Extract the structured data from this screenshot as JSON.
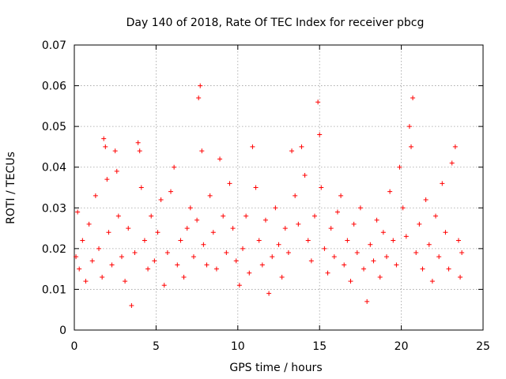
{
  "chart_data": {
    "type": "scatter",
    "title": "Day 140 of 2018, Rate Of TEC Index for receiver pbcg",
    "xlabel": "GPS time / hours",
    "ylabel": "ROTI / TECUs",
    "xlim": [
      0,
      25
    ],
    "ylim": [
      0,
      0.07
    ],
    "xticks": [
      "0",
      "5",
      "10",
      "15",
      "20",
      "25"
    ],
    "yticks": [
      "0",
      "0.01",
      "0.02",
      "0.03",
      "0.04",
      "0.05",
      "0.06",
      "0.07"
    ],
    "grid": true,
    "marker": "plus",
    "color": "#ff0000",
    "series": [
      {
        "name": "ROTI",
        "points": [
          [
            0.1,
            0.018
          ],
          [
            0.2,
            0.029
          ],
          [
            0.3,
            0.015
          ],
          [
            0.5,
            0.022
          ],
          [
            0.7,
            0.012
          ],
          [
            0.9,
            0.026
          ],
          [
            1.1,
            0.017
          ],
          [
            1.3,
            0.033
          ],
          [
            1.5,
            0.02
          ],
          [
            1.7,
            0.013
          ],
          [
            1.8,
            0.047
          ],
          [
            1.9,
            0.045
          ],
          [
            2.0,
            0.037
          ],
          [
            2.1,
            0.024
          ],
          [
            2.3,
            0.016
          ],
          [
            2.5,
            0.044
          ],
          [
            2.6,
            0.039
          ],
          [
            2.7,
            0.028
          ],
          [
            2.9,
            0.018
          ],
          [
            3.1,
            0.012
          ],
          [
            3.3,
            0.025
          ],
          [
            3.5,
            0.006
          ],
          [
            3.7,
            0.019
          ],
          [
            3.9,
            0.046
          ],
          [
            4.0,
            0.044
          ],
          [
            4.1,
            0.035
          ],
          [
            4.3,
            0.022
          ],
          [
            4.5,
            0.015
          ],
          [
            4.7,
            0.028
          ],
          [
            4.9,
            0.017
          ],
          [
            5.1,
            0.024
          ],
          [
            5.3,
            0.032
          ],
          [
            5.5,
            0.011
          ],
          [
            5.7,
            0.019
          ],
          [
            5.9,
            0.034
          ],
          [
            6.1,
            0.04
          ],
          [
            6.3,
            0.016
          ],
          [
            6.5,
            0.022
          ],
          [
            6.7,
            0.013
          ],
          [
            6.9,
            0.025
          ],
          [
            7.1,
            0.03
          ],
          [
            7.3,
            0.018
          ],
          [
            7.5,
            0.027
          ],
          [
            7.6,
            0.057
          ],
          [
            7.7,
            0.06
          ],
          [
            7.8,
            0.044
          ],
          [
            7.9,
            0.021
          ],
          [
            8.1,
            0.016
          ],
          [
            8.3,
            0.033
          ],
          [
            8.5,
            0.024
          ],
          [
            8.7,
            0.015
          ],
          [
            8.9,
            0.042
          ],
          [
            9.1,
            0.028
          ],
          [
            9.3,
            0.019
          ],
          [
            9.5,
            0.036
          ],
          [
            9.7,
            0.025
          ],
          [
            9.9,
            0.017
          ],
          [
            10.1,
            0.011
          ],
          [
            10.3,
            0.02
          ],
          [
            10.5,
            0.028
          ],
          [
            10.7,
            0.014
          ],
          [
            10.9,
            0.045
          ],
          [
            11.1,
            0.035
          ],
          [
            11.3,
            0.022
          ],
          [
            11.5,
            0.016
          ],
          [
            11.7,
            0.027
          ],
          [
            11.9,
            0.009
          ],
          [
            12.1,
            0.018
          ],
          [
            12.3,
            0.03
          ],
          [
            12.5,
            0.021
          ],
          [
            12.7,
            0.013
          ],
          [
            12.9,
            0.025
          ],
          [
            13.1,
            0.019
          ],
          [
            13.3,
            0.044
          ],
          [
            13.5,
            0.033
          ],
          [
            13.7,
            0.026
          ],
          [
            13.9,
            0.045
          ],
          [
            14.1,
            0.038
          ],
          [
            14.3,
            0.022
          ],
          [
            14.5,
            0.017
          ],
          [
            14.7,
            0.028
          ],
          [
            14.9,
            0.056
          ],
          [
            15.0,
            0.048
          ],
          [
            15.1,
            0.035
          ],
          [
            15.3,
            0.02
          ],
          [
            15.5,
            0.014
          ],
          [
            15.7,
            0.025
          ],
          [
            15.9,
            0.018
          ],
          [
            16.1,
            0.029
          ],
          [
            16.3,
            0.033
          ],
          [
            16.5,
            0.016
          ],
          [
            16.7,
            0.022
          ],
          [
            16.9,
            0.012
          ],
          [
            17.1,
            0.026
          ],
          [
            17.3,
            0.019
          ],
          [
            17.5,
            0.03
          ],
          [
            17.7,
            0.015
          ],
          [
            17.9,
            0.007
          ],
          [
            18.1,
            0.021
          ],
          [
            18.3,
            0.017
          ],
          [
            18.5,
            0.027
          ],
          [
            18.7,
            0.013
          ],
          [
            18.9,
            0.024
          ],
          [
            19.1,
            0.018
          ],
          [
            19.3,
            0.034
          ],
          [
            19.5,
            0.022
          ],
          [
            19.7,
            0.016
          ],
          [
            19.9,
            0.04
          ],
          [
            20.1,
            0.03
          ],
          [
            20.3,
            0.023
          ],
          [
            20.5,
            0.05
          ],
          [
            20.6,
            0.045
          ],
          [
            20.7,
            0.057
          ],
          [
            20.9,
            0.019
          ],
          [
            21.1,
            0.026
          ],
          [
            21.3,
            0.015
          ],
          [
            21.5,
            0.032
          ],
          [
            21.7,
            0.021
          ],
          [
            21.9,
            0.012
          ],
          [
            22.1,
            0.028
          ],
          [
            22.3,
            0.018
          ],
          [
            22.5,
            0.036
          ],
          [
            22.7,
            0.024
          ],
          [
            22.9,
            0.015
          ],
          [
            23.1,
            0.041
          ],
          [
            23.3,
            0.045
          ],
          [
            23.5,
            0.022
          ],
          [
            23.6,
            0.013
          ],
          [
            23.7,
            0.019
          ]
        ]
      }
    ]
  }
}
